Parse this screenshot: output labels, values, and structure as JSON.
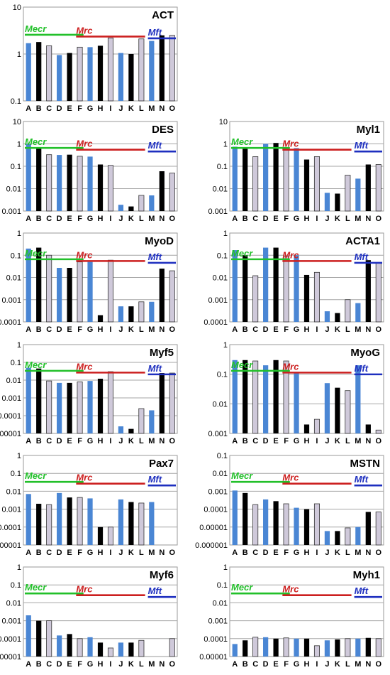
{
  "categories": [
    "A",
    "B",
    "C",
    "D",
    "E",
    "F",
    "G",
    "H",
    "I",
    "J",
    "K",
    "L",
    "M",
    "N",
    "O"
  ],
  "groups": [
    {
      "label": "Mecr",
      "color": "#22c02a"
    },
    {
      "label": "Mrc",
      "color": "#cc1f1f"
    },
    {
      "label": "Mft",
      "color": "#1e2fbf"
    }
  ],
  "bar_colors": {
    "blue": "#4a86d4",
    "black": "#000000",
    "lilac": "#cfc9da"
  },
  "chart_data": [
    {
      "type": "bar",
      "title": "ACT",
      "yscale": "log",
      "ylim": [
        0.1,
        10
      ],
      "yticks": [
        "10",
        "1",
        "0.1"
      ],
      "categories": [
        "A",
        "B",
        "C",
        "D",
        "E",
        "F",
        "G",
        "H",
        "I",
        "J",
        "K",
        "L",
        "M",
        "N",
        "O"
      ],
      "values": [
        1.7,
        1.8,
        1.5,
        0.95,
        1.05,
        1.4,
        1.4,
        1.5,
        2.2,
        1.05,
        1.0,
        2.1,
        1.9,
        2.5,
        2.5
      ]
    },
    {
      "type": "bar",
      "title": "DES",
      "yscale": "log",
      "ylim": [
        0.001,
        10
      ],
      "yticks": [
        "10",
        "1",
        "0.1",
        "0.01",
        "0.001"
      ],
      "categories": [
        "A",
        "B",
        "C",
        "D",
        "E",
        "F",
        "G",
        "H",
        "I",
        "J",
        "K",
        "L",
        "M",
        "N",
        "O"
      ],
      "values": [
        1.0,
        0.65,
        0.33,
        0.32,
        0.33,
        0.28,
        0.27,
        0.12,
        0.11,
        0.0019,
        0.0016,
        0.005,
        0.005,
        0.06,
        0.05
      ]
    },
    {
      "type": "bar",
      "title": "Myl1",
      "yscale": "log",
      "ylim": [
        0.001,
        10
      ],
      "yticks": [
        "10",
        "1",
        "0.1",
        "0.01",
        "0.001"
      ],
      "categories": [
        "A",
        "B",
        "C",
        "D",
        "E",
        "F",
        "G",
        "H",
        "I",
        "J",
        "K",
        "L",
        "M",
        "N",
        "O"
      ],
      "values": [
        0.75,
        0.65,
        0.27,
        1.0,
        1.1,
        0.7,
        0.65,
        0.2,
        0.27,
        0.0065,
        0.006,
        0.04,
        0.028,
        0.12,
        0.12
      ]
    },
    {
      "type": "bar",
      "title": "MyoD",
      "yscale": "log",
      "ylim": [
        0.0001,
        1
      ],
      "yticks": [
        "1",
        "0.1",
        "0.01",
        "0.001",
        "0.0001"
      ],
      "categories": [
        "A",
        "B",
        "C",
        "D",
        "E",
        "F",
        "G",
        "H",
        "I",
        "J",
        "K",
        "L",
        "M",
        "N",
        "O"
      ],
      "values": [
        0.2,
        0.22,
        0.1,
        0.027,
        0.027,
        0.05,
        0.05,
        0.0002,
        0.06,
        0.0005,
        0.0005,
        0.0008,
        0.0008,
        0.025,
        0.02
      ]
    },
    {
      "type": "bar",
      "title": "ACTA1",
      "yscale": "log",
      "ylim": [
        0.0001,
        1
      ],
      "yticks": [
        "1",
        "0.1",
        "0.01",
        "0.001",
        "0.0001"
      ],
      "categories": [
        "A",
        "B",
        "C",
        "D",
        "E",
        "F",
        "G",
        "H",
        "I",
        "J",
        "K",
        "L",
        "M",
        "N",
        "O"
      ],
      "values": [
        0.17,
        0.1,
        0.012,
        0.22,
        0.22,
        0.09,
        0.1,
        0.013,
        0.017,
        0.0003,
        0.00025,
        0.001,
        0.0007,
        0.06,
        0.045
      ]
    },
    {
      "type": "bar",
      "title": "Myf5",
      "yscale": "log",
      "ylim": [
        1e-05,
        1
      ],
      "yticks": [
        "1",
        "0.1",
        "0.01",
        "0.001",
        "0.0001",
        "0.00001"
      ],
      "categories": [
        "A",
        "B",
        "C",
        "D",
        "E",
        "F",
        "G",
        "H",
        "I",
        "J",
        "K",
        "L",
        "M",
        "N",
        "O"
      ],
      "values": [
        0.05,
        0.045,
        0.009,
        0.007,
        0.007,
        0.008,
        0.009,
        0.012,
        0.03,
        2.5e-05,
        1.8e-05,
        0.00025,
        0.0002,
        0.025,
        0.025
      ]
    },
    {
      "type": "bar",
      "title": "MyoG",
      "yscale": "log",
      "ylim": [
        0.001,
        1
      ],
      "yticks": [
        "1",
        "0.1",
        "0.01",
        "0.001"
      ],
      "categories": [
        "A",
        "B",
        "C",
        "D",
        "E",
        "F",
        "G",
        "H",
        "I",
        "J",
        "K",
        "L",
        "M",
        "N",
        "O"
      ],
      "values": [
        0.3,
        0.3,
        0.28,
        0.2,
        0.3,
        0.28,
        0.12,
        0.002,
        0.003,
        0.05,
        0.035,
        0.028,
        0.2,
        0.002,
        0.0013
      ]
    },
    {
      "type": "bar",
      "title": "Pax7",
      "yscale": "log",
      "ylim": [
        1e-05,
        1
      ],
      "yticks": [
        "1",
        "0.1",
        "0.01",
        "0.001",
        "0.0001",
        "0.00001"
      ],
      "categories": [
        "A",
        "B",
        "C",
        "D",
        "E",
        "F",
        "G",
        "H",
        "I",
        "J",
        "K",
        "L",
        "M",
        "N",
        "O"
      ],
      "values": [
        0.007,
        0.002,
        0.0018,
        0.008,
        0.0045,
        0.0045,
        0.004,
        0.0001,
        0.0001,
        0.0035,
        0.0025,
        0.0022,
        0.0025,
        null,
        null
      ]
    },
    {
      "type": "bar",
      "title": "MSTN",
      "yscale": "log",
      "ylim": [
        1e-06,
        0.1
      ],
      "yticks": [
        "0.1",
        "0.01",
        "0.001",
        "0.0001",
        "0.00001",
        "0.000001"
      ],
      "categories": [
        "A",
        "B",
        "C",
        "D",
        "E",
        "F",
        "G",
        "H",
        "I",
        "J",
        "K",
        "L",
        "M",
        "N",
        "O"
      ],
      "values": [
        0.0011,
        0.0008,
        0.00018,
        0.00035,
        0.00028,
        0.0002,
        0.00012,
        0.0001,
        0.0002,
        6e-06,
        6e-06,
        9e-06,
        1e-05,
        7e-05,
        7e-05
      ]
    },
    {
      "type": "bar",
      "title": "Myf6",
      "yscale": "log",
      "ylim": [
        1e-05,
        1
      ],
      "yticks": [
        "1",
        "0.1",
        "0.01",
        "0.001",
        "0.0001",
        "0.00001"
      ],
      "categories": [
        "A",
        "B",
        "C",
        "D",
        "E",
        "F",
        "G",
        "H",
        "I",
        "J",
        "K",
        "L",
        "M",
        "N",
        "O"
      ],
      "values": [
        0.002,
        0.001,
        0.001,
        0.00015,
        0.00018,
        0.0001,
        0.00012,
        6e-05,
        3e-05,
        6e-05,
        6e-05,
        8e-05,
        1e-05,
        null,
        0.0001
      ]
    },
    {
      "type": "bar",
      "title": "Myh1",
      "yscale": "log",
      "ylim": [
        1e-05,
        1
      ],
      "yticks": [
        "1",
        "0.1",
        "0.01",
        "0.001",
        "0.0001",
        "0.00001"
      ],
      "categories": [
        "A",
        "B",
        "C",
        "D",
        "E",
        "F",
        "G",
        "H",
        "I",
        "J",
        "K",
        "L",
        "M",
        "N",
        "O"
      ],
      "values": [
        5e-05,
        8e-05,
        0.00012,
        0.00012,
        0.0001,
        0.00011,
        0.0001,
        0.0001,
        4e-05,
        8e-05,
        9e-05,
        0.0001,
        0.0001,
        0.00011,
        0.0001
      ]
    }
  ]
}
